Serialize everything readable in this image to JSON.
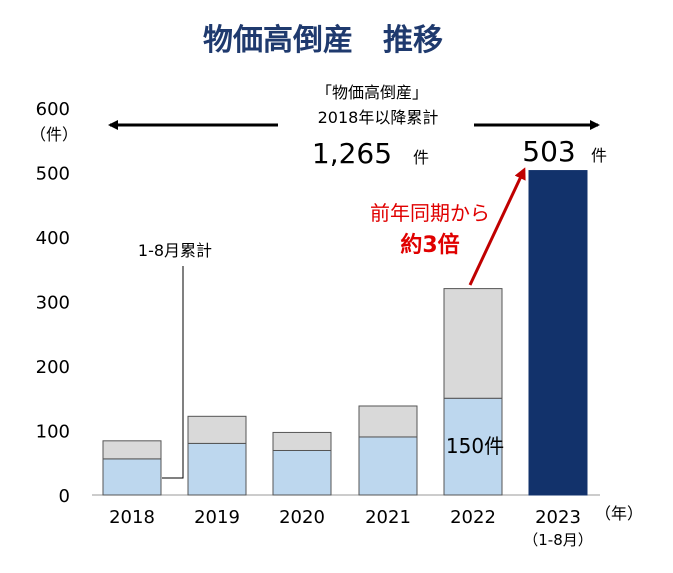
{
  "colors": {
    "title": "#1f3a6e",
    "jan_aug": "#bdd7ee",
    "rest_of_year": "#d9d9d9",
    "bar_2023": "#12326b",
    "bar_border": "#555555",
    "emphasis": "#e00000",
    "arrow_red": "#c00000"
  },
  "chart_data": {
    "type": "bar",
    "stacked": true,
    "title": "物価高倒産　推移",
    "ylabel": "（件）",
    "xunit": "（年）",
    "ylim": [
      0,
      600
    ],
    "yticks": [
      "0",
      "100",
      "200",
      "300",
      "400",
      "500",
      "600"
    ],
    "categories": [
      "2018",
      "2019",
      "2020",
      "2021",
      "2022",
      "2023"
    ],
    "category_sublabels": [
      "",
      "",
      "",
      "",
      "",
      "（1-8月）"
    ],
    "series": [
      {
        "name": "1-8月累計",
        "values": [
          56,
          80,
          69,
          90,
          150,
          503
        ]
      },
      {
        "name": "",
        "values": [
          28,
          42,
          28,
          48,
          170,
          0
        ]
      }
    ],
    "annotations": {
      "cumulative_title_line1": "「物価高倒産」",
      "cumulative_title_line2": "2018年以降累計",
      "cumulative_value": "1,265",
      "cumulative_unit": "件",
      "value_2023": "503",
      "value_2023_unit": "件",
      "label_2022_jan_aug": "150件",
      "comparison_line1": "前年同期から",
      "comparison_line2": "約3倍",
      "legend_callout": "1-8月累計"
    }
  }
}
